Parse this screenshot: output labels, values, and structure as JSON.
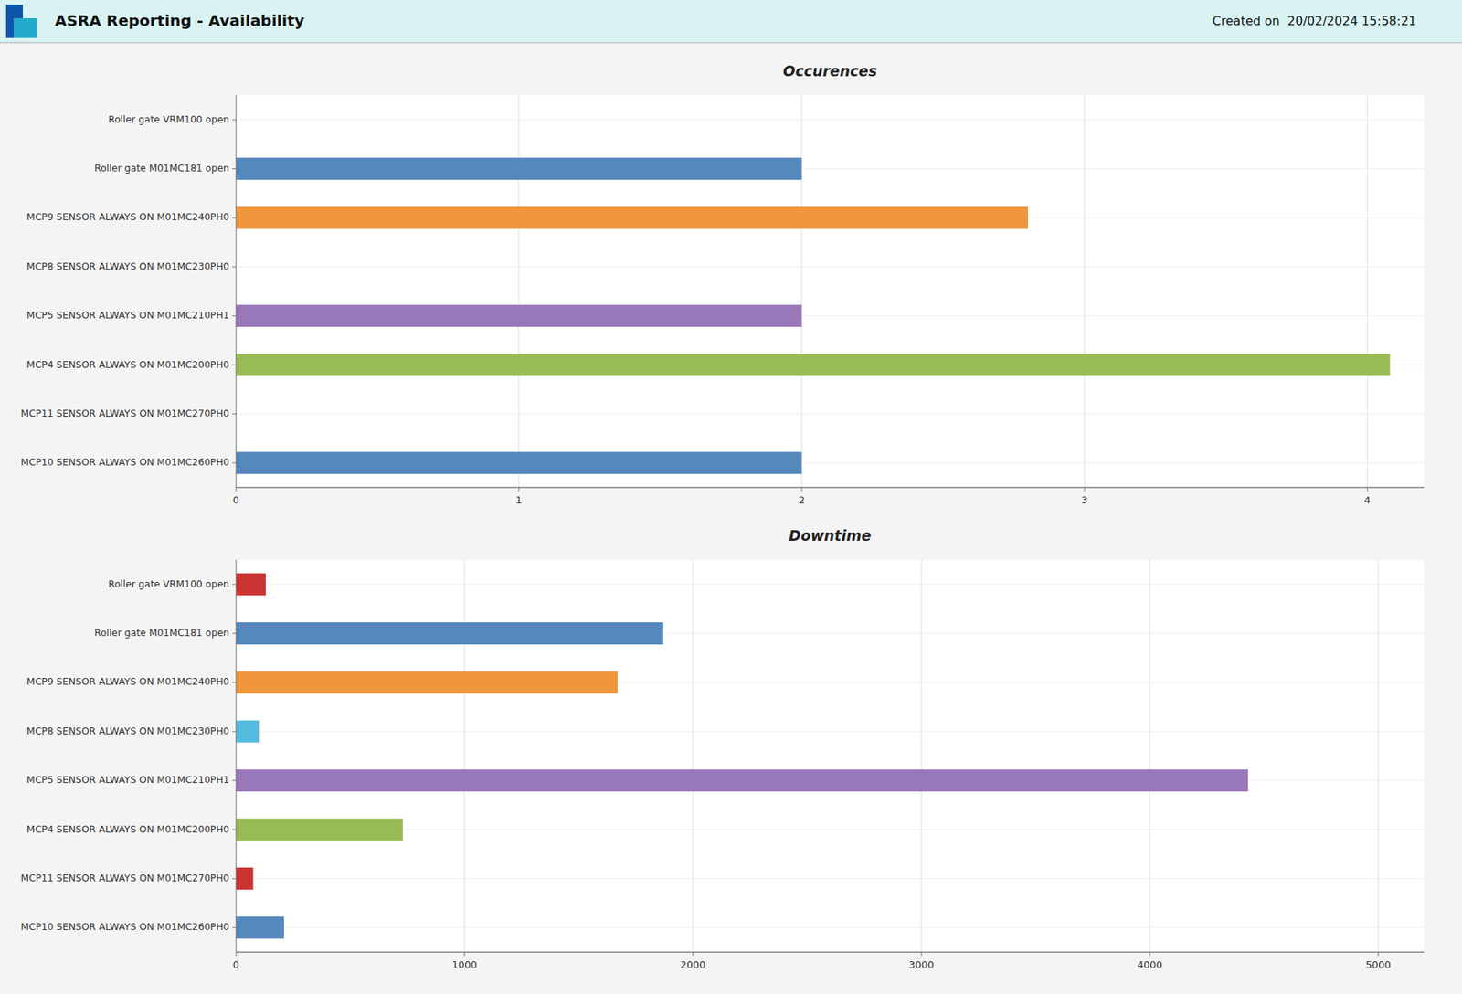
{
  "title": "ASRA Reporting - Availability",
  "subtitle": "Created on  20/02/2024 15:58:21",
  "chart_data": [
    {
      "type": "bar",
      "orientation": "horizontal",
      "title": "Occurences",
      "categories": [
        "Roller gate VRM100 open",
        "Roller gate M01MC181 open",
        "MCP9 SENSOR ALWAYS ON M01MC240PH0",
        "MCP8 SENSOR ALWAYS ON M01MC230PH0",
        "MCP5 SENSOR ALWAYS ON M01MC210PH1",
        "MCP4 SENSOR ALWAYS ON M01MC200PH0",
        "MCP11 SENSOR ALWAYS ON M01MC270PH0",
        "MCP10 SENSOR ALWAYS ON M01MC260PH0"
      ],
      "values": [
        0.0,
        2.0,
        2.8,
        0.0,
        2.0,
        4.08,
        0.0,
        2.0
      ],
      "colors": [
        "#cc3333",
        "#5588bb",
        "#f0963c",
        "#55bbdd",
        "#9977bb",
        "#99bb55",
        "#cc3333",
        "#5588bb"
      ],
      "xlim": [
        0,
        4.2
      ],
      "xticks": [
        0,
        1,
        2,
        3,
        4
      ],
      "grid": true
    },
    {
      "type": "bar",
      "orientation": "horizontal",
      "title": "Downtime",
      "categories": [
        "Roller gate VRM100 open",
        "Roller gate M01MC181 open",
        "MCP9 SENSOR ALWAYS ON M01MC240PH0",
        "MCP8 SENSOR ALWAYS ON M01MC230PH0",
        "MCP5 SENSOR ALWAYS ON M01MC210PH1",
        "MCP4 SENSOR ALWAYS ON M01MC200PH0",
        "MCP11 SENSOR ALWAYS ON M01MC270PH0",
        "MCP10 SENSOR ALWAYS ON M01MC260PH0"
      ],
      "values": [
        130,
        1870,
        1670,
        100,
        4430,
        730,
        75,
        210
      ],
      "colors": [
        "#cc3333",
        "#5588bb",
        "#f0963c",
        "#55bbdd",
        "#9977bb",
        "#99bb55",
        "#cc3333",
        "#5588bb"
      ],
      "xlim": [
        0,
        5200
      ],
      "xticks": [
        0,
        1000,
        2000,
        3000,
        4000,
        5000
      ],
      "grid": true
    }
  ]
}
